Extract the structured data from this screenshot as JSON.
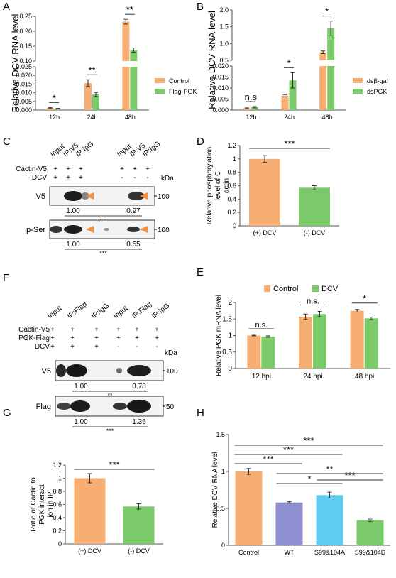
{
  "colors": {
    "orange": "#F6AE72",
    "green": "#7CCB6B",
    "purple": "#8E8FD1",
    "cyan": "#5FCBEF",
    "arrow": "#F28E3B",
    "axis": "#555555"
  },
  "chart_data": [
    {
      "panel": "A",
      "type": "bar",
      "ylabel": "Relative DCV RNA level",
      "categories": [
        "12h",
        "24h",
        "48h"
      ],
      "series": [
        {
          "name": "Control",
          "values": [
            0.0012,
            0.0155,
            0.232
          ],
          "errors": [
            0.0003,
            0.002,
            0.008
          ]
        },
        {
          "name": "Flag-PGK",
          "values": [
            0.0008,
            0.009,
            0.137
          ],
          "errors": [
            0.0002,
            0.0012,
            0.007
          ]
        }
      ],
      "broken_axis": {
        "lower": [
          0,
          0.025
        ],
        "upper": [
          0.1,
          0.25
        ]
      },
      "lower_ticks": [
        "0.000",
        "0.005",
        "0.010",
        "0.015",
        "0.020",
        "0.025"
      ],
      "upper_ticks": [
        "0.10",
        "0.15",
        "0.20",
        "0.25"
      ],
      "significance": [
        "*",
        "**",
        "**"
      ]
    },
    {
      "panel": "B",
      "type": "bar",
      "ylabel": "Relative DCV RNA level",
      "categories": [
        "12h",
        "24h",
        "48h"
      ],
      "series": [
        {
          "name": "dsβ-gal",
          "values": [
            0.0008,
            0.0065,
            0.74
          ],
          "errors": [
            0.0002,
            0.0005,
            0.04
          ]
        },
        {
          "name": "dsPGK",
          "values": [
            0.0013,
            0.0135,
            1.45
          ],
          "errors": [
            0.0003,
            0.0035,
            0.22
          ]
        }
      ],
      "broken_axis": {
        "lower": [
          0,
          0.02
        ],
        "upper": [
          0.5,
          2
        ]
      },
      "lower_ticks": [
        "0.000",
        "0.005",
        "0.010",
        "0.015",
        "0.020"
      ],
      "upper_ticks": [
        "0.5",
        "1.0",
        "1.5",
        "2.0"
      ],
      "significance": [
        "n.s",
        "*",
        "*"
      ]
    },
    {
      "panel": "D",
      "type": "bar",
      "ylabel": "Relative phosphorylation level of Cactin",
      "categories": [
        "(+) DCV",
        "(-) DCV"
      ],
      "values": [
        1.0,
        0.57
      ],
      "errors": [
        0.05,
        0.03
      ],
      "ylim": [
        0,
        1.2
      ],
      "ticks": [
        "0",
        "0.2",
        "0.4",
        "0.6",
        "0.8",
        "1",
        "1.2"
      ],
      "significance": [
        "***"
      ]
    },
    {
      "panel": "E",
      "type": "bar",
      "ylabel": "Relative PGK mRNA level",
      "categories": [
        "12 hpi",
        "24 hpi",
        "48 hpi"
      ],
      "series": [
        {
          "name": "Control",
          "values": [
            1.0,
            1.57,
            1.75
          ],
          "errors": [
            0.01,
            0.08,
            0.04
          ]
        },
        {
          "name": "DCV",
          "values": [
            0.97,
            1.65,
            1.52
          ],
          "errors": [
            0.02,
            0.08,
            0.04
          ]
        }
      ],
      "ylim": [
        0,
        2
      ],
      "ticks": [
        "0",
        "0.5",
        "1",
        "1.5",
        "2"
      ],
      "significance": [
        "n.s.",
        "n.s.",
        "*"
      ]
    },
    {
      "panel": "G",
      "type": "bar",
      "ylabel": "Ratio of Cactin to PGK interaction in IP",
      "categories": [
        "(+) DCV",
        "(-) DCV"
      ],
      "values": [
        1.0,
        0.57
      ],
      "errors": [
        0.07,
        0.04
      ],
      "ylim": [
        0,
        1.2
      ],
      "ticks": [
        "0",
        "0.2",
        "0.4",
        "0.6",
        "0.8",
        "1",
        "1.2"
      ],
      "significance": [
        "***"
      ]
    },
    {
      "panel": "H",
      "type": "bar",
      "ylabel": "Relative DCV RNA level",
      "categories": [
        "Control",
        "WT",
        "S99&104A",
        "S99&104D"
      ],
      "values": [
        1.0,
        0.58,
        0.68,
        0.34
      ],
      "errors": [
        0.04,
        0.01,
        0.04,
        0.015
      ],
      "ylim": [
        0,
        1.5
      ],
      "ticks": [
        "0",
        "0.5",
        "1",
        "1.5"
      ],
      "significance": [
        "***",
        "***",
        "***",
        "**",
        "*",
        "***"
      ]
    }
  ],
  "blots": {
    "C": {
      "lanes": [
        "Input",
        "IP:V5",
        "IP:IgG",
        "Input",
        "IP:V5",
        "IP:IgG"
      ],
      "rows": [
        {
          "label": "Cactin-V5",
          "signs": [
            "+",
            "+",
            "+",
            "+",
            "+",
            "+"
          ]
        },
        {
          "label": "DCV",
          "signs": [
            "+",
            "+",
            "+",
            "-",
            "-",
            "-"
          ]
        }
      ],
      "unit": "kDa",
      "bands": [
        {
          "label": "V5",
          "marker": "100",
          "quant": [
            "1.00",
            "0.97"
          ],
          "stat": "n.s."
        },
        {
          "label": "p-Ser",
          "marker": "100",
          "quant": [
            "1.00",
            "0.55"
          ],
          "stat": "***"
        }
      ]
    },
    "F": {
      "lanes": [
        "Input",
        "IP:Flag",
        "IP:IgG",
        "Input",
        "IP:Flag",
        "IP:IgG"
      ],
      "rows": [
        {
          "label": "Cactin-V5",
          "signs": [
            "+",
            "+",
            "+",
            "+",
            "+",
            "+"
          ]
        },
        {
          "label": "PGK-Flag",
          "signs": [
            "+",
            "+",
            "+",
            "+",
            "+",
            "+"
          ]
        },
        {
          "label": "DCV",
          "signs": [
            "+",
            "+",
            "+",
            "-",
            "-",
            "-"
          ]
        }
      ],
      "unit": "kDa",
      "bands": [
        {
          "label": "V5",
          "marker": "100",
          "quant": [
            "1.00",
            "0.78"
          ],
          "stat": "**"
        },
        {
          "label": "Flag",
          "marker": "50",
          "quant": [
            "1.00",
            "1.36"
          ],
          "stat": "***"
        }
      ]
    }
  },
  "panel_letters": [
    "A",
    "B",
    "C",
    "D",
    "E",
    "F",
    "G",
    "H"
  ]
}
